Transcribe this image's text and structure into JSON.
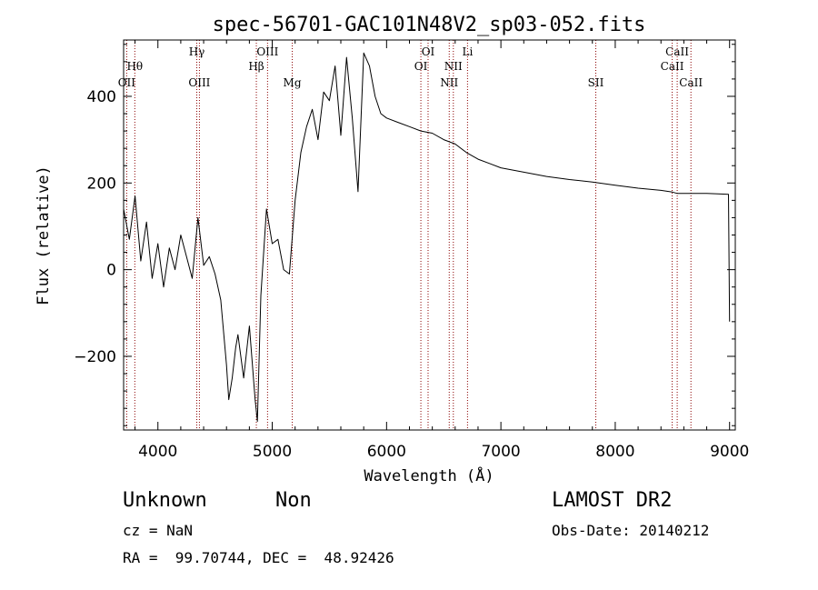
{
  "chart_data": {
    "type": "line",
    "title": "spec-56701-GAC101N48V2_sp03-052.fits",
    "xlabel": "Wavelength (Å)",
    "ylabel": "Flux (relative)",
    "xlim": [
      3700,
      9050
    ],
    "ylim": [
      -370,
      530
    ],
    "xticks": [
      4000,
      5000,
      6000,
      7000,
      8000,
      9000
    ],
    "xtick_labels": [
      "4000",
      "5000",
      "6000",
      "7000",
      "8000",
      "9000"
    ],
    "yticks": [
      -200,
      0,
      200,
      400
    ],
    "ytick_labels": [
      "−200",
      "0",
      "200",
      "400"
    ],
    "grid": false,
    "series": [
      {
        "x": [
          3700,
          3750,
          3800,
          3850,
          3900,
          3950,
          4000,
          4050,
          4100,
          4150,
          4200,
          4250,
          4300,
          4350,
          4400,
          4450,
          4500,
          4550,
          4600,
          4620,
          4650,
          4680,
          4700,
          4750,
          4800,
          4850,
          4870,
          4900,
          4950,
          5000,
          5050,
          5100,
          5150,
          5200,
          5250,
          5300,
          5350,
          5400,
          5450,
          5500,
          5550,
          5600,
          5650,
          5700,
          5750,
          5800,
          5850,
          5900,
          5950,
          6000,
          6100,
          6200,
          6300,
          6400,
          6500,
          6600,
          6700,
          6800,
          6900,
          7000,
          7200,
          7400,
          7600,
          7800,
          8000,
          8200,
          8400,
          8500,
          8540,
          8600,
          8700,
          8800,
          8900,
          8990,
          9000
        ],
        "y": [
          140,
          70,
          170,
          20,
          110,
          -20,
          60,
          -40,
          50,
          0,
          80,
          30,
          -20,
          120,
          10,
          30,
          -10,
          -70,
          -220,
          -300,
          -250,
          -180,
          -150,
          -250,
          -130,
          -300,
          -350,
          -60,
          140,
          60,
          70,
          0,
          -10,
          160,
          270,
          330,
          370,
          300,
          410,
          390,
          470,
          310,
          490,
          350,
          180,
          500,
          470,
          400,
          360,
          350,
          340,
          330,
          320,
          315,
          300,
          290,
          270,
          255,
          245,
          235,
          225,
          215,
          208,
          202,
          195,
          188,
          183,
          179,
          176,
          176,
          176,
          176,
          175,
          174,
          -120
        ],
        "color": "#000000"
      }
    ],
    "spectral_lines": [
      {
        "label": "Hθ",
        "wavelength": 3798,
        "label_row": 2
      },
      {
        "label": "OII",
        "wavelength": 3727,
        "label_row": 3
      },
      {
        "label": "Hγ",
        "wavelength": 4340,
        "label_row": 1
      },
      {
        "label": "OIII",
        "wavelength": 4363,
        "label_row": 3
      },
      {
        "label": "OIII",
        "wavelength": 4959,
        "label_row": 1
      },
      {
        "label": "Hβ",
        "wavelength": 4861,
        "label_row": 2
      },
      {
        "label": "Mg",
        "wavelength": 5175,
        "label_row": 3
      },
      {
        "label": "OI",
        "wavelength": 6363,
        "label_row": 1
      },
      {
        "label": "OI",
        "wavelength": 6300,
        "label_row": 2
      },
      {
        "label": "Li",
        "wavelength": 6708,
        "label_row": 1
      },
      {
        "label": "NII",
        "wavelength": 6584,
        "label_row": 2
      },
      {
        "label": "NII",
        "wavelength": 6548,
        "label_row": 3
      },
      {
        "label": "SII",
        "wavelength": 7830,
        "label_row": 3
      },
      {
        "label": "CaII",
        "wavelength": 8542,
        "label_row": 1
      },
      {
        "label": "CaII",
        "wavelength": 8498,
        "label_row": 2
      },
      {
        "label": "CaII",
        "wavelength": 8662,
        "label_row": 3
      }
    ],
    "line_color": "#8b0000"
  },
  "footer": {
    "object_class": "Unknown",
    "subclass": "Non",
    "survey": "LAMOST DR2",
    "redshift": "cz = NaN",
    "obs_date": "Obs-Date: 20140212",
    "coords": "RA =  99.70744, DEC =  48.92426"
  }
}
